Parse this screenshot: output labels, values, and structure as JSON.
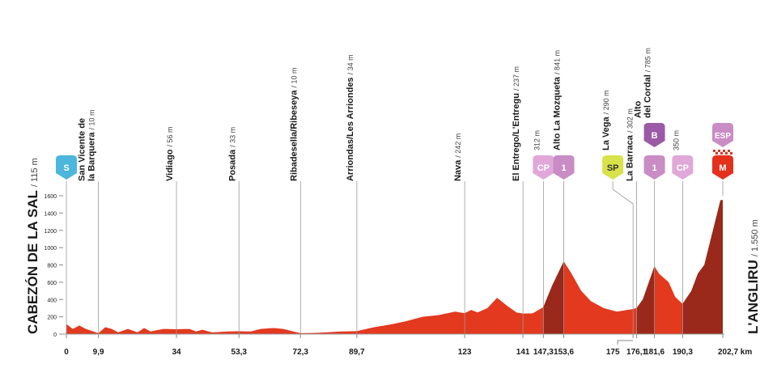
{
  "chart_data": {
    "type": "area",
    "x": [
      0,
      2,
      4,
      6,
      9.9,
      12,
      14,
      16,
      19,
      22,
      24,
      26,
      30,
      34,
      38,
      40,
      42,
      45,
      50,
      53.3,
      57,
      60,
      64,
      67,
      70,
      72.3,
      78,
      85,
      89.7,
      95,
      100,
      105,
      110,
      115,
      120,
      123,
      125,
      127,
      130,
      133,
      136,
      139,
      141,
      144,
      147.3,
      150,
      153.6,
      156,
      159,
      162,
      166,
      170,
      175,
      176.1,
      178,
      181.6,
      183,
      186,
      188,
      190.3,
      193,
      195,
      197,
      199,
      201,
      202,
      202.7
    ],
    "values": [
      115,
      60,
      100,
      60,
      10,
      80,
      60,
      20,
      60,
      20,
      70,
      30,
      60,
      56,
      60,
      30,
      50,
      20,
      30,
      33,
      30,
      60,
      70,
      60,
      30,
      10,
      15,
      30,
      34,
      80,
      110,
      150,
      200,
      220,
      260,
      242,
      280,
      250,
      300,
      420,
      330,
      250,
      237,
      240,
      312,
      560,
      841,
      700,
      500,
      380,
      300,
      260,
      290,
      302,
      400,
      785,
      700,
      600,
      430,
      350,
      500,
      700,
      800,
      1100,
      1400,
      1550,
      1550
    ],
    "color": "#e2391f",
    "climb_color": "#9a281b",
    "climbs": [
      [
        147.3,
        153.6
      ],
      [
        176.1,
        181.6
      ],
      [
        190.3,
        202.7
      ]
    ],
    "xlim": [
      0,
      202.7
    ],
    "ylim": [
      0,
      1600
    ],
    "yticks": [
      0,
      200,
      400,
      600,
      800,
      1000,
      1200,
      1400,
      1600
    ],
    "xticks": [
      0,
      {
        "value": 9.9,
        "label": "9,9"
      },
      34,
      {
        "value": 53.3,
        "label": "53,3"
      },
      {
        "value": 72.3,
        "label": "72,3"
      },
      {
        "value": 89.7,
        "label": "89,7"
      },
      123,
      141,
      {
        "value": 147.3,
        "label": "147,3"
      },
      {
        "value": 153.6,
        "label": "153,6"
      },
      175,
      {
        "value": 176.1,
        "label": "176,1"
      },
      {
        "value": 181.6,
        "label": "181,6"
      },
      {
        "value": 190.3,
        "label": "190,3"
      },
      {
        "value": 202.7,
        "label": "202,7 km"
      }
    ],
    "start": {
      "name": "CABEZÓN DE LA SAL",
      "elev": "/ 115 m",
      "badges": [
        {
          "text": "S",
          "color": "#4cb6dc"
        }
      ]
    },
    "finish": {
      "name": "L'ANGLIRU",
      "elev": "/ 1.550 m",
      "badges": [
        {
          "text": "M",
          "color": "#e3311d"
        },
        {
          "text": "ESP",
          "color": "#c98cc4"
        }
      ]
    },
    "places": [
      {
        "km": 9.9,
        "name": [
          "San Vicente de",
          "la Barquera"
        ],
        "elev": "/ 10 m"
      },
      {
        "km": 34,
        "name": [
          "Vidiago"
        ],
        "elev": "/ 56 m"
      },
      {
        "km": 53.3,
        "name": [
          "Posada"
        ],
        "elev": "/ 33 m"
      },
      {
        "km": 72.3,
        "name": [
          "Ribadesella/Ribeseya"
        ],
        "elev": "/ 10 m"
      },
      {
        "km": 89.7,
        "name": [
          "Arriondas/Les Arriondes"
        ],
        "elev": "/ 34 m"
      },
      {
        "km": 123,
        "name": [
          "Nava"
        ],
        "elev": "/ 242 m"
      },
      {
        "km": 141,
        "name": [
          "El Entrego/L'Entregu"
        ],
        "elev": "/ 237 m"
      },
      {
        "km": 147.3,
        "name": [],
        "elev": "312 m",
        "badges": [
          {
            "text": "CP",
            "color": "#e0a8d8"
          }
        ]
      },
      {
        "km": 153.6,
        "name": [
          "Alto La Mozqueta"
        ],
        "elev": "/ 841 m",
        "badges": [
          {
            "text": "1",
            "color": "#c98cc4"
          }
        ]
      },
      {
        "km": 175,
        "name": [
          "La Vega"
        ],
        "elev": "/ 290 m",
        "badges": [
          {
            "text": "SP",
            "color": "#d8e24a"
          }
        ]
      },
      {
        "km": 176.1,
        "name": [
          "La Barraca"
        ],
        "elev": "/ 302 m"
      },
      {
        "km": 181.6,
        "name": [
          "Alto",
          "del Cordal"
        ],
        "elev": "/ 785 m",
        "badges": [
          {
            "text": "1",
            "color": "#c98cc4"
          },
          {
            "text": "B",
            "color": "#9b5aa6"
          }
        ]
      },
      {
        "km": 190.3,
        "name": [],
        "elev": "350 m",
        "badges": [
          {
            "text": "CP",
            "color": "#e0a8d8"
          }
        ]
      }
    ]
  }
}
